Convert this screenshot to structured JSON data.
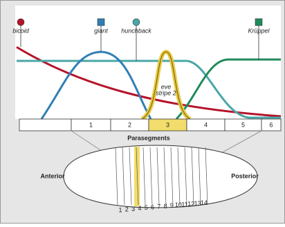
{
  "genes": [
    {
      "label": "bicoid",
      "color": "#b5122a"
    },
    {
      "label": "giant",
      "color": "#2f7fb5"
    },
    {
      "label": "hunchback",
      "color": "#4aa6a6"
    },
    {
      "label": "Krüppel",
      "color": "#1f8a5a"
    }
  ],
  "eve_label": [
    "eve",
    "stripe 2"
  ],
  "parasegments": {
    "title": "Parasegments",
    "cells": [
      "",
      "1",
      "2",
      "3",
      "4",
      "5",
      "6"
    ],
    "highlight": 3
  },
  "embryo": {
    "anterior": "Anterior",
    "posterior": "Posterior",
    "segments": [
      "1",
      "2",
      "3",
      "4",
      "5",
      "6",
      "7",
      "8",
      "9",
      "10",
      "11",
      "12",
      "13",
      "14"
    ]
  }
}
